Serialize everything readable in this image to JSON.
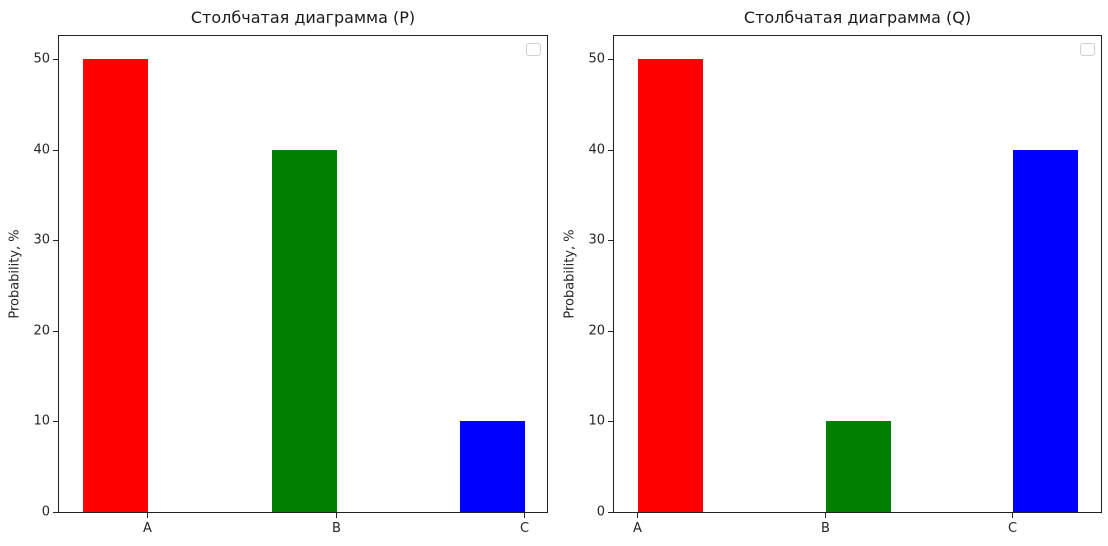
{
  "chart_data": [
    {
      "type": "bar",
      "title": "Столбчатая диаграмма (P)",
      "xlabel": "",
      "ylabel": "Probability, %",
      "categories": [
        "A",
        "B",
        "C"
      ],
      "values": [
        50,
        40,
        10
      ],
      "colors": [
        "#ff0000",
        "#008000",
        "#0000ff"
      ],
      "ylim": [
        0,
        52.5
      ],
      "yticks": [
        0,
        10,
        20,
        30,
        40,
        50
      ],
      "grid": false,
      "legend": {
        "position": "upper right",
        "entries": []
      }
    },
    {
      "type": "bar",
      "title": "Столбчатая диаграмма (Q)",
      "xlabel": "",
      "ylabel": "Probability, %",
      "categories": [
        "A",
        "B",
        "C"
      ],
      "values": [
        50,
        10,
        40
      ],
      "colors": [
        "#ff0000",
        "#008000",
        "#0000ff"
      ],
      "ylim": [
        0,
        52.5
      ],
      "yticks": [
        0,
        10,
        20,
        30,
        40,
        50
      ],
      "grid": false,
      "legend": {
        "position": "upper right",
        "entries": []
      }
    }
  ]
}
